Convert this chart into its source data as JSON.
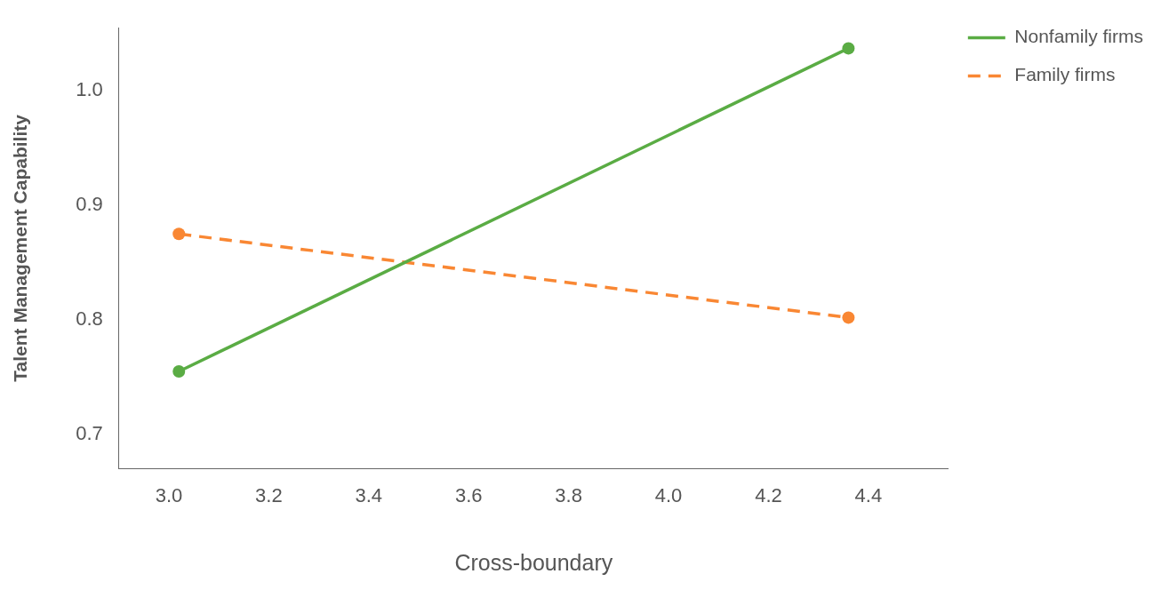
{
  "chart_data": {
    "type": "line",
    "xlabel": "Cross-boundary",
    "ylabel": "Talent Management Capability",
    "xlim": [
      2.9,
      4.56
    ],
    "xticks": [
      {
        "value": 3.0,
        "label": "3.0"
      },
      {
        "value": 3.2,
        "label": "3.2"
      },
      {
        "value": 3.4,
        "label": "3.4"
      },
      {
        "value": 3.6,
        "label": "3.6"
      },
      {
        "value": 3.8,
        "label": "3.8"
      },
      {
        "value": 4.0,
        "label": "4.0"
      },
      {
        "value": 4.2,
        "label": "4.2"
      },
      {
        "value": 4.4,
        "label": "4.4"
      }
    ],
    "ylim": [
      0.67,
      1.055
    ],
    "yticks": [
      {
        "value": 0.7,
        "label": "0.7"
      },
      {
        "value": 0.8,
        "label": "0.8"
      },
      {
        "value": 0.9,
        "label": "0.9"
      },
      {
        "value": 1.0,
        "label": "1.0"
      }
    ],
    "x": [
      3.02,
      4.36
    ],
    "series": [
      {
        "name": "Nonfamily firms",
        "color": "#5aac44",
        "values": [
          0.755,
          1.037
        ],
        "line_style": "solid"
      },
      {
        "name": "Family firms",
        "color": "#f98733",
        "values": [
          0.875,
          0.802
        ],
        "line_style": "dashed"
      }
    ],
    "marker": "circle",
    "grid": false,
    "legend": "top right"
  }
}
